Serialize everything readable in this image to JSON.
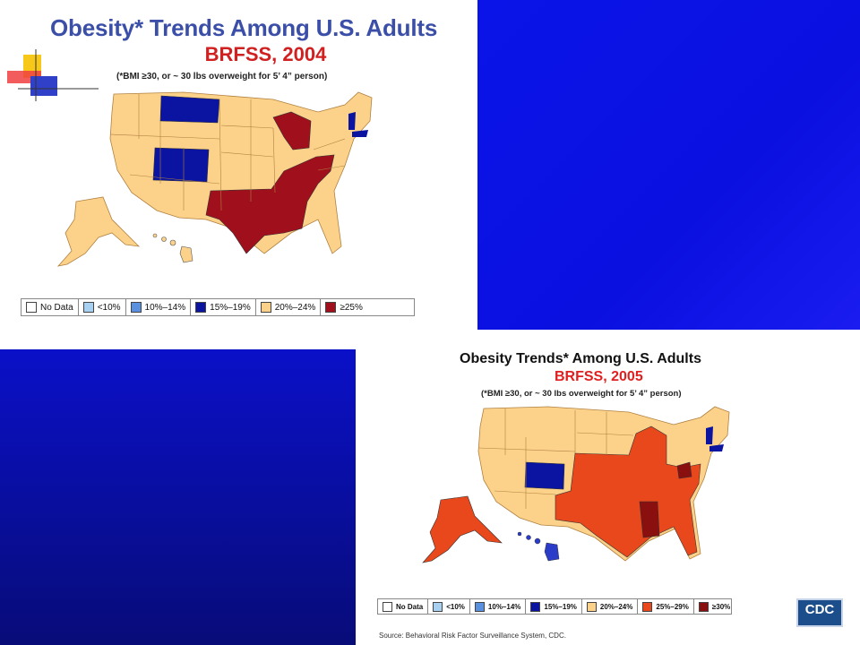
{
  "slide_2004": {
    "title": "Obesity* Trends Among U.S. Adults",
    "subtitle": "BRFSS, 2004",
    "note": "(*BMI ≥30, or ~ 30 lbs overweight for 5’ 4” person)",
    "legend": [
      {
        "label": "No Data",
        "color": "#ffffff"
      },
      {
        "label": "<10%",
        "color": "#a8d0f0"
      },
      {
        "label": "10%–14%",
        "color": "#5a90e0"
      },
      {
        "label": "15%–19%",
        "color": "#0a14a0"
      },
      {
        "label": "20%–24%",
        "color": "#fcd28a"
      },
      {
        "label": "≥25%",
        "color": "#a0101c"
      }
    ]
  },
  "slide_2005": {
    "title": "Obesity Trends* Among U.S. Adults",
    "subtitle": "BRFSS, 2005",
    "note": "(*BMI ≥30, or ~ 30 lbs overweight for 5’ 4” person)",
    "legend": [
      {
        "label": "No Data",
        "color": "#ffffff"
      },
      {
        "label": "<10%",
        "color": "#a8d0f0"
      },
      {
        "label": "10%–14%",
        "color": "#5a90e0"
      },
      {
        "label": "15%–19%",
        "color": "#0a14a0"
      },
      {
        "label": "20%–24%",
        "color": "#fcd28a"
      },
      {
        "label": "25%–29%",
        "color": "#e8481c"
      },
      {
        "label": "≥30%",
        "color": "#8a1010"
      }
    ],
    "source": "Source: Behavioral Risk Factor Surveillance System, CDC.",
    "logo_text": "CDC"
  }
}
